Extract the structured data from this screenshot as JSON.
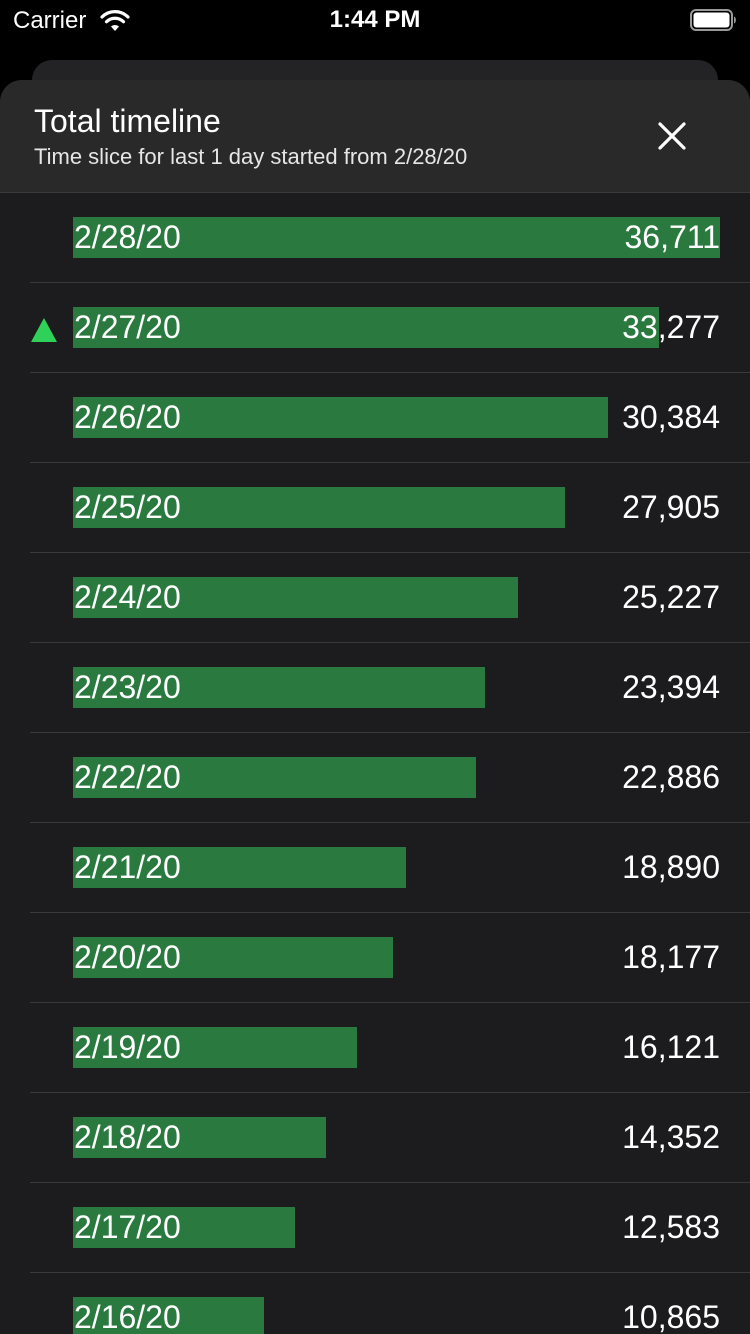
{
  "status_bar": {
    "carrier": "Carrier",
    "time": "1:44 PM"
  },
  "sheet": {
    "title": "Total timeline",
    "subtitle": "Time slice for last 1 day started from 2/28/20",
    "close_icon": "close-icon"
  },
  "colors": {
    "bar": "#2a7a40",
    "trend_up": "#30d158"
  },
  "rows": [
    {
      "date": "2/28/20",
      "value": "36,711",
      "count": 36711,
      "trend": ""
    },
    {
      "date": "2/27/20",
      "value": "33,277",
      "count": 33277,
      "trend": "up"
    },
    {
      "date": "2/26/20",
      "value": "30,384",
      "count": 30384,
      "trend": ""
    },
    {
      "date": "2/25/20",
      "value": "27,905",
      "count": 27905,
      "trend": ""
    },
    {
      "date": "2/24/20",
      "value": "25,227",
      "count": 25227,
      "trend": ""
    },
    {
      "date": "2/23/20",
      "value": "23,394",
      "count": 23394,
      "trend": ""
    },
    {
      "date": "2/22/20",
      "value": "22,886",
      "count": 22886,
      "trend": ""
    },
    {
      "date": "2/21/20",
      "value": "18,890",
      "count": 18890,
      "trend": ""
    },
    {
      "date": "2/20/20",
      "value": "18,177",
      "count": 18177,
      "trend": ""
    },
    {
      "date": "2/19/20",
      "value": "16,121",
      "count": 16121,
      "trend": ""
    },
    {
      "date": "2/18/20",
      "value": "14,352",
      "count": 14352,
      "trend": ""
    },
    {
      "date": "2/17/20",
      "value": "12,583",
      "count": 12583,
      "trend": ""
    },
    {
      "date": "2/16/20",
      "value": "10,865",
      "count": 10865,
      "trend": ""
    }
  ]
}
